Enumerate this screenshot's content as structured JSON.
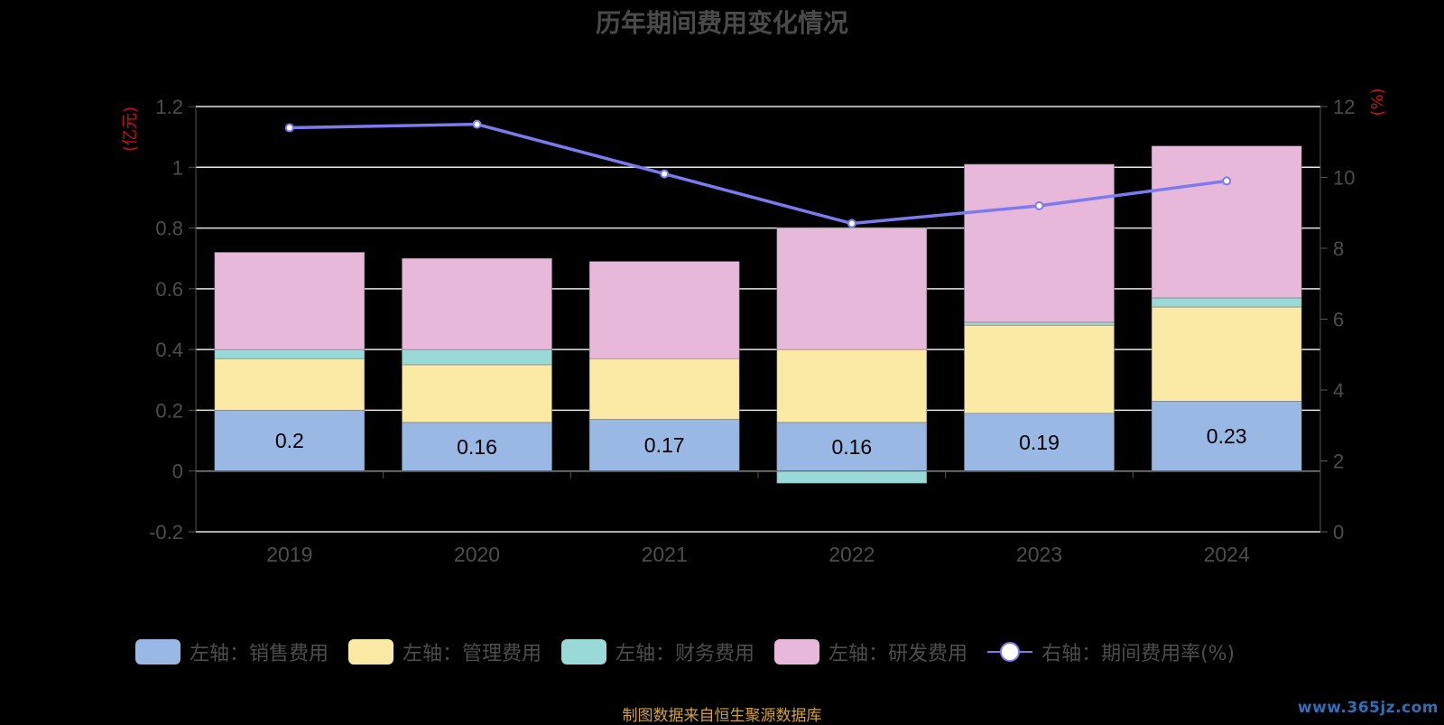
{
  "title": "历年期间费用变化情况",
  "chart_data": {
    "type": "bar",
    "stacked": true,
    "categories": [
      "2019",
      "2020",
      "2021",
      "2022",
      "2023",
      "2024"
    ],
    "y_left": {
      "unit": "(亿元)",
      "ylim": [
        -0.2,
        1.2
      ],
      "ticks": [
        "1.2",
        "1",
        "0.8",
        "0.6",
        "0.4",
        "0.2",
        "0",
        "-0.2"
      ]
    },
    "y_right": {
      "unit": "(%)",
      "ylim": [
        0,
        12
      ],
      "ticks": [
        "12",
        "10",
        "8",
        "6",
        "4",
        "2",
        "0"
      ]
    },
    "series": [
      {
        "name": "左轴：销售费用",
        "axis": "left",
        "color": "#9ab8e4",
        "values": [
          0.2,
          0.16,
          0.17,
          0.16,
          0.19,
          0.23
        ],
        "labels": [
          "0.2",
          "0.16",
          "0.17",
          "0.16",
          "0.19",
          "0.23"
        ]
      },
      {
        "name": "左轴：管理费用",
        "axis": "left",
        "color": "#faeaa6",
        "values": [
          0.17,
          0.19,
          0.2,
          0.24,
          0.29,
          0.31
        ]
      },
      {
        "name": "左轴：财务费用",
        "axis": "left",
        "color": "#99d9d7",
        "values": [
          0.03,
          0.05,
          0.0,
          -0.04,
          0.01,
          0.03
        ]
      },
      {
        "name": "左轴：研发费用",
        "axis": "left",
        "color": "#e8b8da",
        "values": [
          0.32,
          0.3,
          0.32,
          0.4,
          0.52,
          0.5
        ]
      },
      {
        "name": "右轴：期间费用率(%)",
        "axis": "right",
        "type": "line",
        "color": "#7b7bef",
        "values": [
          11.4,
          11.5,
          10.1,
          8.7,
          9.2,
          9.9
        ]
      }
    ],
    "grid": true,
    "legend_position": "bottom"
  },
  "source_note": "制图数据来自恒生聚源数据库",
  "watermark": "www.365jz.com"
}
